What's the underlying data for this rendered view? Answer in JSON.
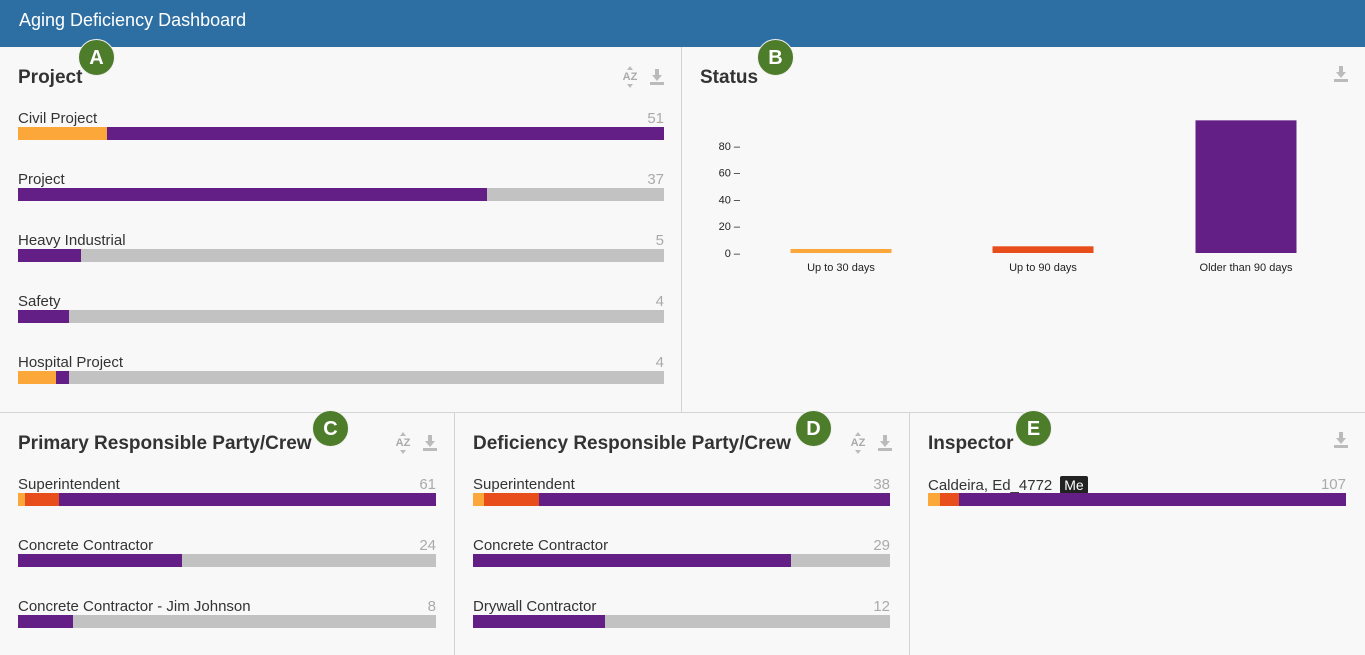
{
  "app": {
    "title": "Aging Deficiency Dashboard"
  },
  "colors": {
    "header": "#2e6fa3",
    "up30": "#fba73a",
    "up90": "#e84e1c",
    "older": "#631f86",
    "remainder": "#c2c2c2",
    "badge": "#4d7c2b"
  },
  "icons": {
    "sort": "az-sort-icon",
    "download": "download-icon"
  },
  "badges": [
    "A",
    "B",
    "C",
    "D",
    "E"
  ],
  "panels": {
    "project": {
      "title": "Project",
      "sort_label": "AZ",
      "max": 51,
      "rows": [
        {
          "label": "Civil Project",
          "count": "51",
          "segments": [
            7,
            0,
            44
          ]
        },
        {
          "label": "Project",
          "count": "37",
          "segments": [
            0,
            0,
            37
          ]
        },
        {
          "label": "Heavy Industrial",
          "count": "5",
          "segments": [
            0,
            0,
            5
          ]
        },
        {
          "label": "Safety",
          "count": "4",
          "segments": [
            0,
            0,
            4
          ]
        },
        {
          "label": "Hospital Project",
          "count": "4",
          "segments": [
            3,
            0,
            1
          ]
        }
      ]
    },
    "status": {
      "title": "Status"
    },
    "primary": {
      "title": "Primary Responsible Party/Crew",
      "sort_label": "AZ",
      "max": 61,
      "rows": [
        {
          "label": "Superintendent",
          "count": "61",
          "segments": [
            1,
            5,
            55
          ]
        },
        {
          "label": "Concrete Contractor",
          "count": "24",
          "segments": [
            0,
            0,
            24
          ]
        },
        {
          "label": "Concrete Contractor - Jim Johnson",
          "count": "8",
          "segments": [
            0,
            0,
            8
          ]
        }
      ]
    },
    "deficiency": {
      "title": "Deficiency Responsible Party/Crew",
      "sort_label": "AZ",
      "max": 38,
      "rows": [
        {
          "label": "Superintendent",
          "count": "38",
          "segments": [
            1,
            5,
            32
          ]
        },
        {
          "label": "Concrete Contractor",
          "count": "29",
          "segments": [
            0,
            0,
            29
          ]
        },
        {
          "label": "Drywall Contractor",
          "count": "12",
          "segments": [
            0,
            0,
            12
          ]
        }
      ]
    },
    "inspector": {
      "title": "Inspector",
      "max": 107,
      "rows": [
        {
          "label": "Caldeira, Ed_4772",
          "me": "Me",
          "count": "107",
          "segments": [
            3,
            5,
            99
          ]
        }
      ]
    }
  },
  "chart_data": {
    "type": "bar",
    "title": "Status",
    "categories": [
      "Up to 30 days",
      "Up to 90 days",
      "Older than 90 days"
    ],
    "values": [
      3,
      5,
      99
    ],
    "ylim": [
      0,
      100
    ],
    "yticks": [
      "80 –",
      "60 –",
      "40 –",
      "20 –",
      "0 –"
    ],
    "ytick_values": [
      80,
      60,
      40,
      20,
      0
    ],
    "xlabel": "",
    "ylabel": ""
  }
}
